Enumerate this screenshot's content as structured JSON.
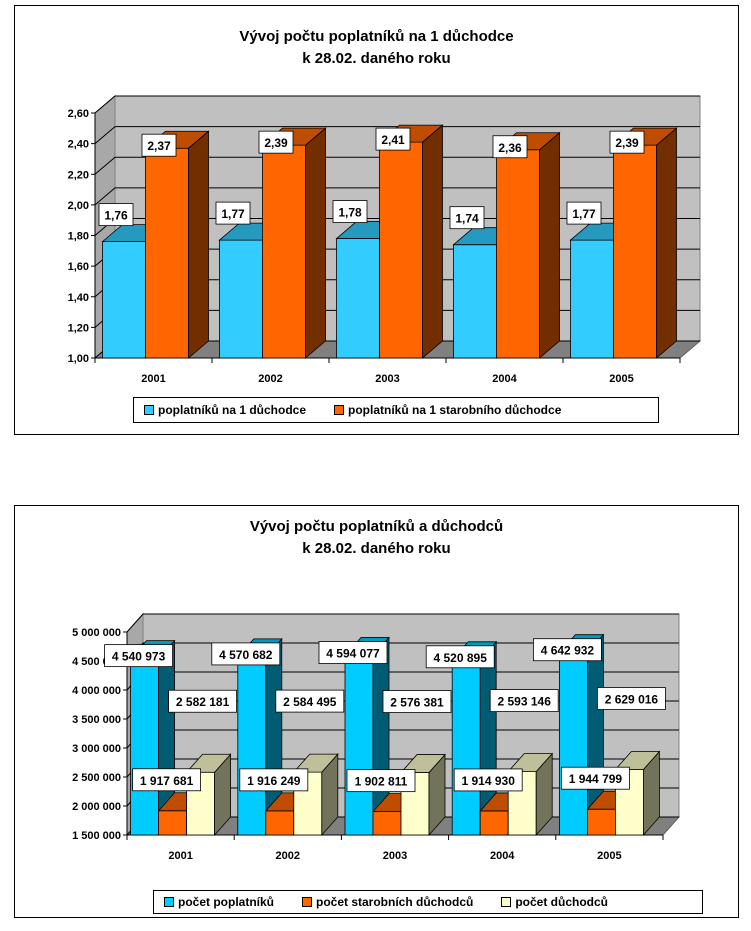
{
  "charts": [
    {
      "id": "chart1",
      "title_line1": "Vývoj počtu poplatníků na 1 důchodce",
      "title_line2": "k  28.02. daného roku",
      "legend": [
        "poplatníků na 1 důchodce",
        "poplatníků na 1 starobního důchodce"
      ]
    },
    {
      "id": "chart2",
      "title_line1": "Vývoj počtu poplatníků a důchodců",
      "title_line2": "k 28.02. daného roku",
      "legend": [
        "počet poplatníků",
        "počet starobních důchodců",
        "počet důchodců"
      ]
    }
  ],
  "chart_data": [
    {
      "type": "bar",
      "title": "Vývoj počtu poplatníků na 1 důchodce k  28.02. daného roku",
      "categories": [
        "2001",
        "2002",
        "2003",
        "2004",
        "2005"
      ],
      "series": [
        {
          "name": "poplatníků na 1 důchodce",
          "values": [
            1.76,
            1.77,
            1.78,
            1.74,
            1.77
          ],
          "labels": [
            "1,76",
            "1,77",
            "1,78",
            "1,74",
            "1,77"
          ],
          "color": "#33CCFF"
        },
        {
          "name": "poplatníků na 1 starobního důchodce",
          "values": [
            2.37,
            2.39,
            2.41,
            2.36,
            2.39
          ],
          "labels": [
            "2,37",
            "2,39",
            "2,41",
            "2,36",
            "2,39"
          ],
          "color": "#FF6600"
        }
      ],
      "yticks": [
        "1,00",
        "1,20",
        "1,40",
        "1,60",
        "1,80",
        "2,00",
        "2,20",
        "2,40",
        "2,60"
      ],
      "ylim": [
        1.0,
        2.6
      ],
      "three_d": true,
      "grid": true,
      "legend_position": "bottom"
    },
    {
      "type": "bar",
      "title": "Vývoj počtu poplatníků a důchodců k 28.02. daného roku",
      "categories": [
        "2001",
        "2002",
        "2003",
        "2004",
        "2005"
      ],
      "series": [
        {
          "name": "počet poplatníků",
          "values": [
            4540973,
            4570682,
            4594077,
            4520895,
            4642932
          ],
          "labels": [
            "4 540 973",
            "4 570 682",
            "4 594 077",
            "4 520 895",
            "4 642 932"
          ],
          "color": "#00CCFF"
        },
        {
          "name": "počet starobních důchodců",
          "values": [
            1917681,
            1916249,
            1902811,
            1914930,
            1944799
          ],
          "labels": [
            "1 917 681",
            "1 916 249",
            "1 902 811",
            "1 914 930",
            "1 944 799"
          ],
          "color": "#FF6600"
        },
        {
          "name": "počet důchodců",
          "values": [
            2582181,
            2584495,
            2576381,
            2593146,
            2629016
          ],
          "labels": [
            "2 582 181",
            "2 584 495",
            "2 576 381",
            "2 593 146",
            "2 629 016"
          ],
          "color": "#FFFFCC"
        }
      ],
      "yticks": [
        "1 500 000",
        "2 000 000",
        "2 500 000",
        "3 000 000",
        "3 500 000",
        "4 000 000",
        "4 500 000",
        "5 000 000"
      ],
      "ylim": [
        1500000,
        5000000
      ],
      "three_d": true,
      "grid": true,
      "legend_position": "bottom"
    }
  ]
}
